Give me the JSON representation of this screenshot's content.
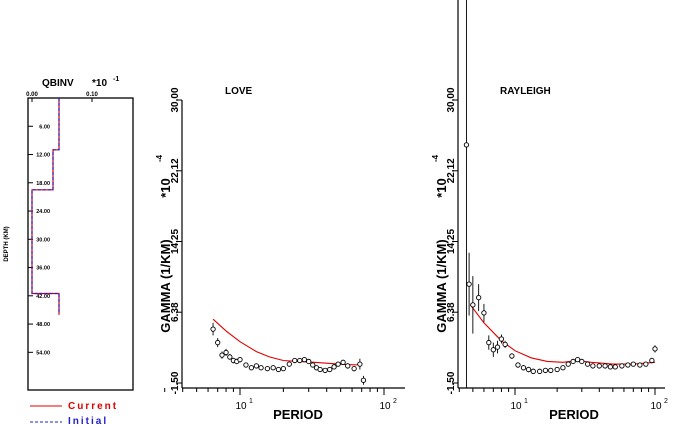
{
  "chart_data": [
    {
      "type": "line",
      "title": "QBINV",
      "scale_label": "*10",
      "scale_exponent": "-1",
      "xticks": [
        {
          "v": 0.0,
          "label": "0.00"
        },
        {
          "v": 0.1,
          "label": "0.10"
        }
      ],
      "ylabel": "DEPTH (KM)",
      "ylim": [
        0,
        62
      ],
      "yticks": [
        {
          "v": 6,
          "label": "6.00"
        },
        {
          "v": 12,
          "label": "12.00"
        },
        {
          "v": 18,
          "label": "18.00"
        },
        {
          "v": 24,
          "label": "24.00"
        },
        {
          "v": 30,
          "label": "30.00"
        },
        {
          "v": 36,
          "label": "36.00"
        },
        {
          "v": 42,
          "label": "42.00"
        },
        {
          "v": 48,
          "label": "48.00"
        },
        {
          "v": 54,
          "label": "54.00"
        }
      ],
      "series": [
        {
          "name": "Current",
          "color": "#e00000",
          "points": [
            [
              0.045,
              0
            ],
            [
              0.045,
              11
            ],
            [
              0.035,
              11
            ],
            [
              0.035,
              19.5
            ],
            [
              0,
              19.5
            ],
            [
              0,
              41.5
            ],
            [
              0.045,
              41.5
            ],
            [
              0.045,
              46
            ]
          ]
        },
        {
          "name": "Initial",
          "color": "#2020d0",
          "points": [
            [
              0.045,
              0
            ],
            [
              0.045,
              11
            ],
            [
              0.035,
              11
            ],
            [
              0.035,
              19.5
            ],
            [
              0,
              19.5
            ],
            [
              0,
              41.5
            ],
            [
              0.045,
              41.5
            ],
            [
              0.045,
              46
            ]
          ]
        }
      ],
      "legend": [
        {
          "label": "Current",
          "color": "#e00000"
        },
        {
          "label": "Initial",
          "color": "#2020d0"
        }
      ]
    },
    {
      "type": "scatter",
      "title": "LOVE",
      "xlabel": "PERIOD",
      "xscale": "log",
      "xlim": [
        3,
        120
      ],
      "xticks": [
        {
          "v": 10,
          "base": "10",
          "exp": "1"
        },
        {
          "v": 100,
          "base": "10",
          "exp": "2"
        }
      ],
      "ylabel": "GAMMA (1/KM)",
      "yscale_label": "*10",
      "yscale_exponent": "-4",
      "ylim": [
        -1.5,
        30.0
      ],
      "yticks": [
        {
          "v": -1.5,
          "label": "-1.50"
        },
        {
          "v": 6.38,
          "label": "6.38"
        },
        {
          "v": 14.25,
          "label": "14.25"
        },
        {
          "v": 22.12,
          "label": "22.12"
        },
        {
          "v": 30.0,
          "label": "30.00"
        }
      ],
      "observed": [
        {
          "x": 6.5,
          "y": 4.5,
          "e": 0.7
        },
        {
          "x": 7.0,
          "y": 3.0,
          "e": 0.5
        },
        {
          "x": 7.5,
          "y": 1.6,
          "e": 0.4
        },
        {
          "x": 8.0,
          "y": 1.9,
          "e": 0.4
        },
        {
          "x": 8.5,
          "y": 1.4,
          "e": 0.3
        },
        {
          "x": 9.0,
          "y": 1.0,
          "e": 0.3
        },
        {
          "x": 9.5,
          "y": 0.9,
          "e": 0.3
        },
        {
          "x": 10.0,
          "y": 1.1,
          "e": 0.3
        },
        {
          "x": 11.0,
          "y": 0.5,
          "e": 0.2
        },
        {
          "x": 12.0,
          "y": 0.2,
          "e": 0.2
        },
        {
          "x": 13.0,
          "y": 0.4,
          "e": 0.2
        },
        {
          "x": 14.0,
          "y": 0.2,
          "e": 0.2
        },
        {
          "x": 15.5,
          "y": 0.1,
          "e": 0.2
        },
        {
          "x": 17.0,
          "y": 0.2,
          "e": 0.2
        },
        {
          "x": 18.5,
          "y": 0.0,
          "e": 0.2
        },
        {
          "x": 20.0,
          "y": 0.1,
          "e": 0.2
        },
        {
          "x": 22.0,
          "y": 0.6,
          "e": 0.2
        },
        {
          "x": 24.0,
          "y": 1.0,
          "e": 0.2
        },
        {
          "x": 26.0,
          "y": 1.0,
          "e": 0.2
        },
        {
          "x": 28.0,
          "y": 1.1,
          "e": 0.2
        },
        {
          "x": 30.0,
          "y": 0.9,
          "e": 0.2
        },
        {
          "x": 32.0,
          "y": 0.5,
          "e": 0.2
        },
        {
          "x": 34.0,
          "y": 0.2,
          "e": 0.2
        },
        {
          "x": 36.0,
          "y": 0.0,
          "e": 0.2
        },
        {
          "x": 39.0,
          "y": -0.1,
          "e": 0.2
        },
        {
          "x": 42.0,
          "y": 0.0,
          "e": 0.2
        },
        {
          "x": 45.0,
          "y": 0.3,
          "e": 0.2
        },
        {
          "x": 48.0,
          "y": 0.6,
          "e": 0.2
        },
        {
          "x": 52.0,
          "y": 0.8,
          "e": 0.2
        },
        {
          "x": 56.0,
          "y": 0.4,
          "e": 0.3
        },
        {
          "x": 62.0,
          "y": 0.1,
          "e": 0.3
        },
        {
          "x": 68.0,
          "y": 0.6,
          "e": 0.6
        },
        {
          "x": 72.0,
          "y": -1.2,
          "e": 0.5
        }
      ],
      "model": [
        [
          6.5,
          5.6
        ],
        [
          8,
          4.3
        ],
        [
          10,
          3.1
        ],
        [
          13,
          2.0
        ],
        [
          16,
          1.4
        ],
        [
          20,
          1.0
        ],
        [
          25,
          0.9
        ],
        [
          30,
          0.85
        ],
        [
          40,
          0.7
        ],
        [
          55,
          0.55
        ],
        [
          70,
          0.5
        ]
      ]
    },
    {
      "type": "scatter",
      "title": "RAYLEIGH",
      "xlabel": "PERIOD",
      "xscale": "log",
      "xlim": [
        3.5,
        110
      ],
      "xticks": [
        {
          "v": 10,
          "base": "10",
          "exp": "1"
        },
        {
          "v": 100,
          "base": "10",
          "exp": "2"
        }
      ],
      "ylabel": "GAMMA (1/KM)",
      "yscale_label": "*10",
      "yscale_exponent": "-4",
      "ylim": [
        -1.5,
        30.0
      ],
      "yticks": [
        {
          "v": -1.5,
          "label": "-1.50"
        },
        {
          "v": 6.38,
          "label": "6.38"
        },
        {
          "v": 14.25,
          "label": "14.25"
        },
        {
          "v": 22.12,
          "label": "22.12"
        },
        {
          "v": 30.0,
          "label": "30.00"
        }
      ],
      "observed": [
        {
          "x": 4.5,
          "y": 25.0,
          "e": 40.0
        },
        {
          "x": 4.7,
          "y": 9.5,
          "e": 3.5
        },
        {
          "x": 5.0,
          "y": 7.2,
          "e": 3.2
        },
        {
          "x": 5.5,
          "y": 8.0,
          "e": 1.5
        },
        {
          "x": 6.0,
          "y": 6.3,
          "e": 1.0
        },
        {
          "x": 6.5,
          "y": 3.0,
          "e": 0.8
        },
        {
          "x": 7.0,
          "y": 2.2,
          "e": 0.8
        },
        {
          "x": 7.5,
          "y": 2.5,
          "e": 0.7
        },
        {
          "x": 8.0,
          "y": 3.4,
          "e": 0.5
        },
        {
          "x": 8.5,
          "y": 2.8,
          "e": 0.4
        },
        {
          "x": 9.5,
          "y": 1.5,
          "e": 0.3
        },
        {
          "x": 10.5,
          "y": 0.5,
          "e": 0.3
        },
        {
          "x": 11.5,
          "y": 0.2,
          "e": 0.3
        },
        {
          "x": 12.5,
          "y": 0.0,
          "e": 0.3
        },
        {
          "x": 13.5,
          "y": -0.2,
          "e": 0.3
        },
        {
          "x": 15.0,
          "y": -0.2,
          "e": 0.2
        },
        {
          "x": 16.5,
          "y": -0.1,
          "e": 0.2
        },
        {
          "x": 18.0,
          "y": -0.1,
          "e": 0.2
        },
        {
          "x": 20.0,
          "y": 0.0,
          "e": 0.2
        },
        {
          "x": 22.0,
          "y": 0.2,
          "e": 0.2
        },
        {
          "x": 24.0,
          "y": 0.6,
          "e": 0.2
        },
        {
          "x": 26.0,
          "y": 0.9,
          "e": 0.2
        },
        {
          "x": 28.0,
          "y": 1.1,
          "e": 0.2
        },
        {
          "x": 30.0,
          "y": 0.9,
          "e": 0.2
        },
        {
          "x": 33.0,
          "y": 0.6,
          "e": 0.2
        },
        {
          "x": 36.0,
          "y": 0.4,
          "e": 0.2
        },
        {
          "x": 40.0,
          "y": 0.4,
          "e": 0.2
        },
        {
          "x": 44.0,
          "y": 0.4,
          "e": 0.2
        },
        {
          "x": 48.0,
          "y": 0.3,
          "e": 0.2
        },
        {
          "x": 52.0,
          "y": 0.3,
          "e": 0.2
        },
        {
          "x": 58.0,
          "y": 0.4,
          "e": 0.2
        },
        {
          "x": 64.0,
          "y": 0.5,
          "e": 0.2
        },
        {
          "x": 70.0,
          "y": 0.6,
          "e": 0.2
        },
        {
          "x": 78.0,
          "y": 0.5,
          "e": 0.2
        },
        {
          "x": 86.0,
          "y": 0.6,
          "e": 0.2
        },
        {
          "x": 95.0,
          "y": 1.0,
          "e": 0.3
        },
        {
          "x": 100.0,
          "y": 2.3,
          "e": 0.4
        }
      ],
      "model": [
        [
          4.8,
          7.2
        ],
        [
          6,
          5.2
        ],
        [
          8,
          3.2
        ],
        [
          10,
          2.1
        ],
        [
          13,
          1.3
        ],
        [
          17,
          0.9
        ],
        [
          22,
          0.8
        ],
        [
          28,
          1.0
        ],
        [
          35,
          0.8
        ],
        [
          50,
          0.6
        ],
        [
          70,
          0.6
        ],
        [
          100,
          0.8
        ]
      ]
    }
  ]
}
